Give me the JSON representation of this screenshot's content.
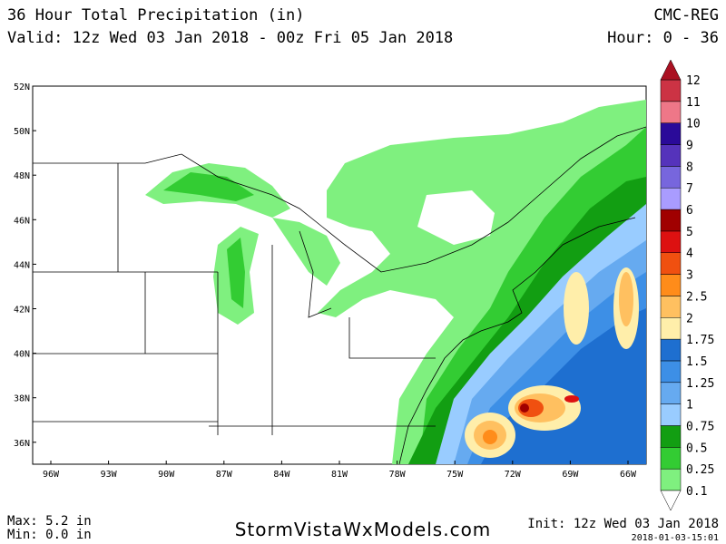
{
  "header": {
    "title": "36 Hour Total Precipitation (in)",
    "valid": "Valid: 12z Wed 03 Jan 2018 - 00z Fri 05 Jan 2018",
    "model": "CMC-REG",
    "hour": "Hour: 0 - 36"
  },
  "map": {
    "lat_labels": [
      "52N",
      "50N",
      "48N",
      "46N",
      "44N",
      "42N",
      "40N",
      "38N",
      "36N"
    ],
    "lon_labels": [
      "96W",
      "93W",
      "90W",
      "87W",
      "84W",
      "81W",
      "78W",
      "75W",
      "72W",
      "69W",
      "66W"
    ]
  },
  "colorbar": {
    "labels": [
      0.1,
      0.25,
      0.5,
      0.75,
      1,
      1.25,
      1.5,
      1.75,
      2,
      2.5,
      3,
      4,
      5,
      6,
      7,
      8,
      9,
      10,
      11,
      12
    ],
    "colors": [
      "#7ff07f",
      "#33cc33",
      "#129e12",
      "#99ccff",
      "#66aaf0",
      "#3d8fe6",
      "#1e6fd0",
      "#ffeeaa",
      "#ffc060",
      "#ff8c1a",
      "#f05010",
      "#dd1111",
      "#a00000",
      "#a99cff",
      "#7766dd",
      "#5533bb",
      "#2a0a99",
      "#ee7788",
      "#cc3344"
    ],
    "over_color": "#aa1122",
    "under_color": "#ffffff"
  },
  "footer": {
    "max": "Max: 5.2 in",
    "min": "Min: 0.0 in",
    "site": "StormVistaWxModels.com",
    "init": "Init: 12z Wed 03 Jan 2018",
    "stamp": "2018-01-03-15:01"
  }
}
